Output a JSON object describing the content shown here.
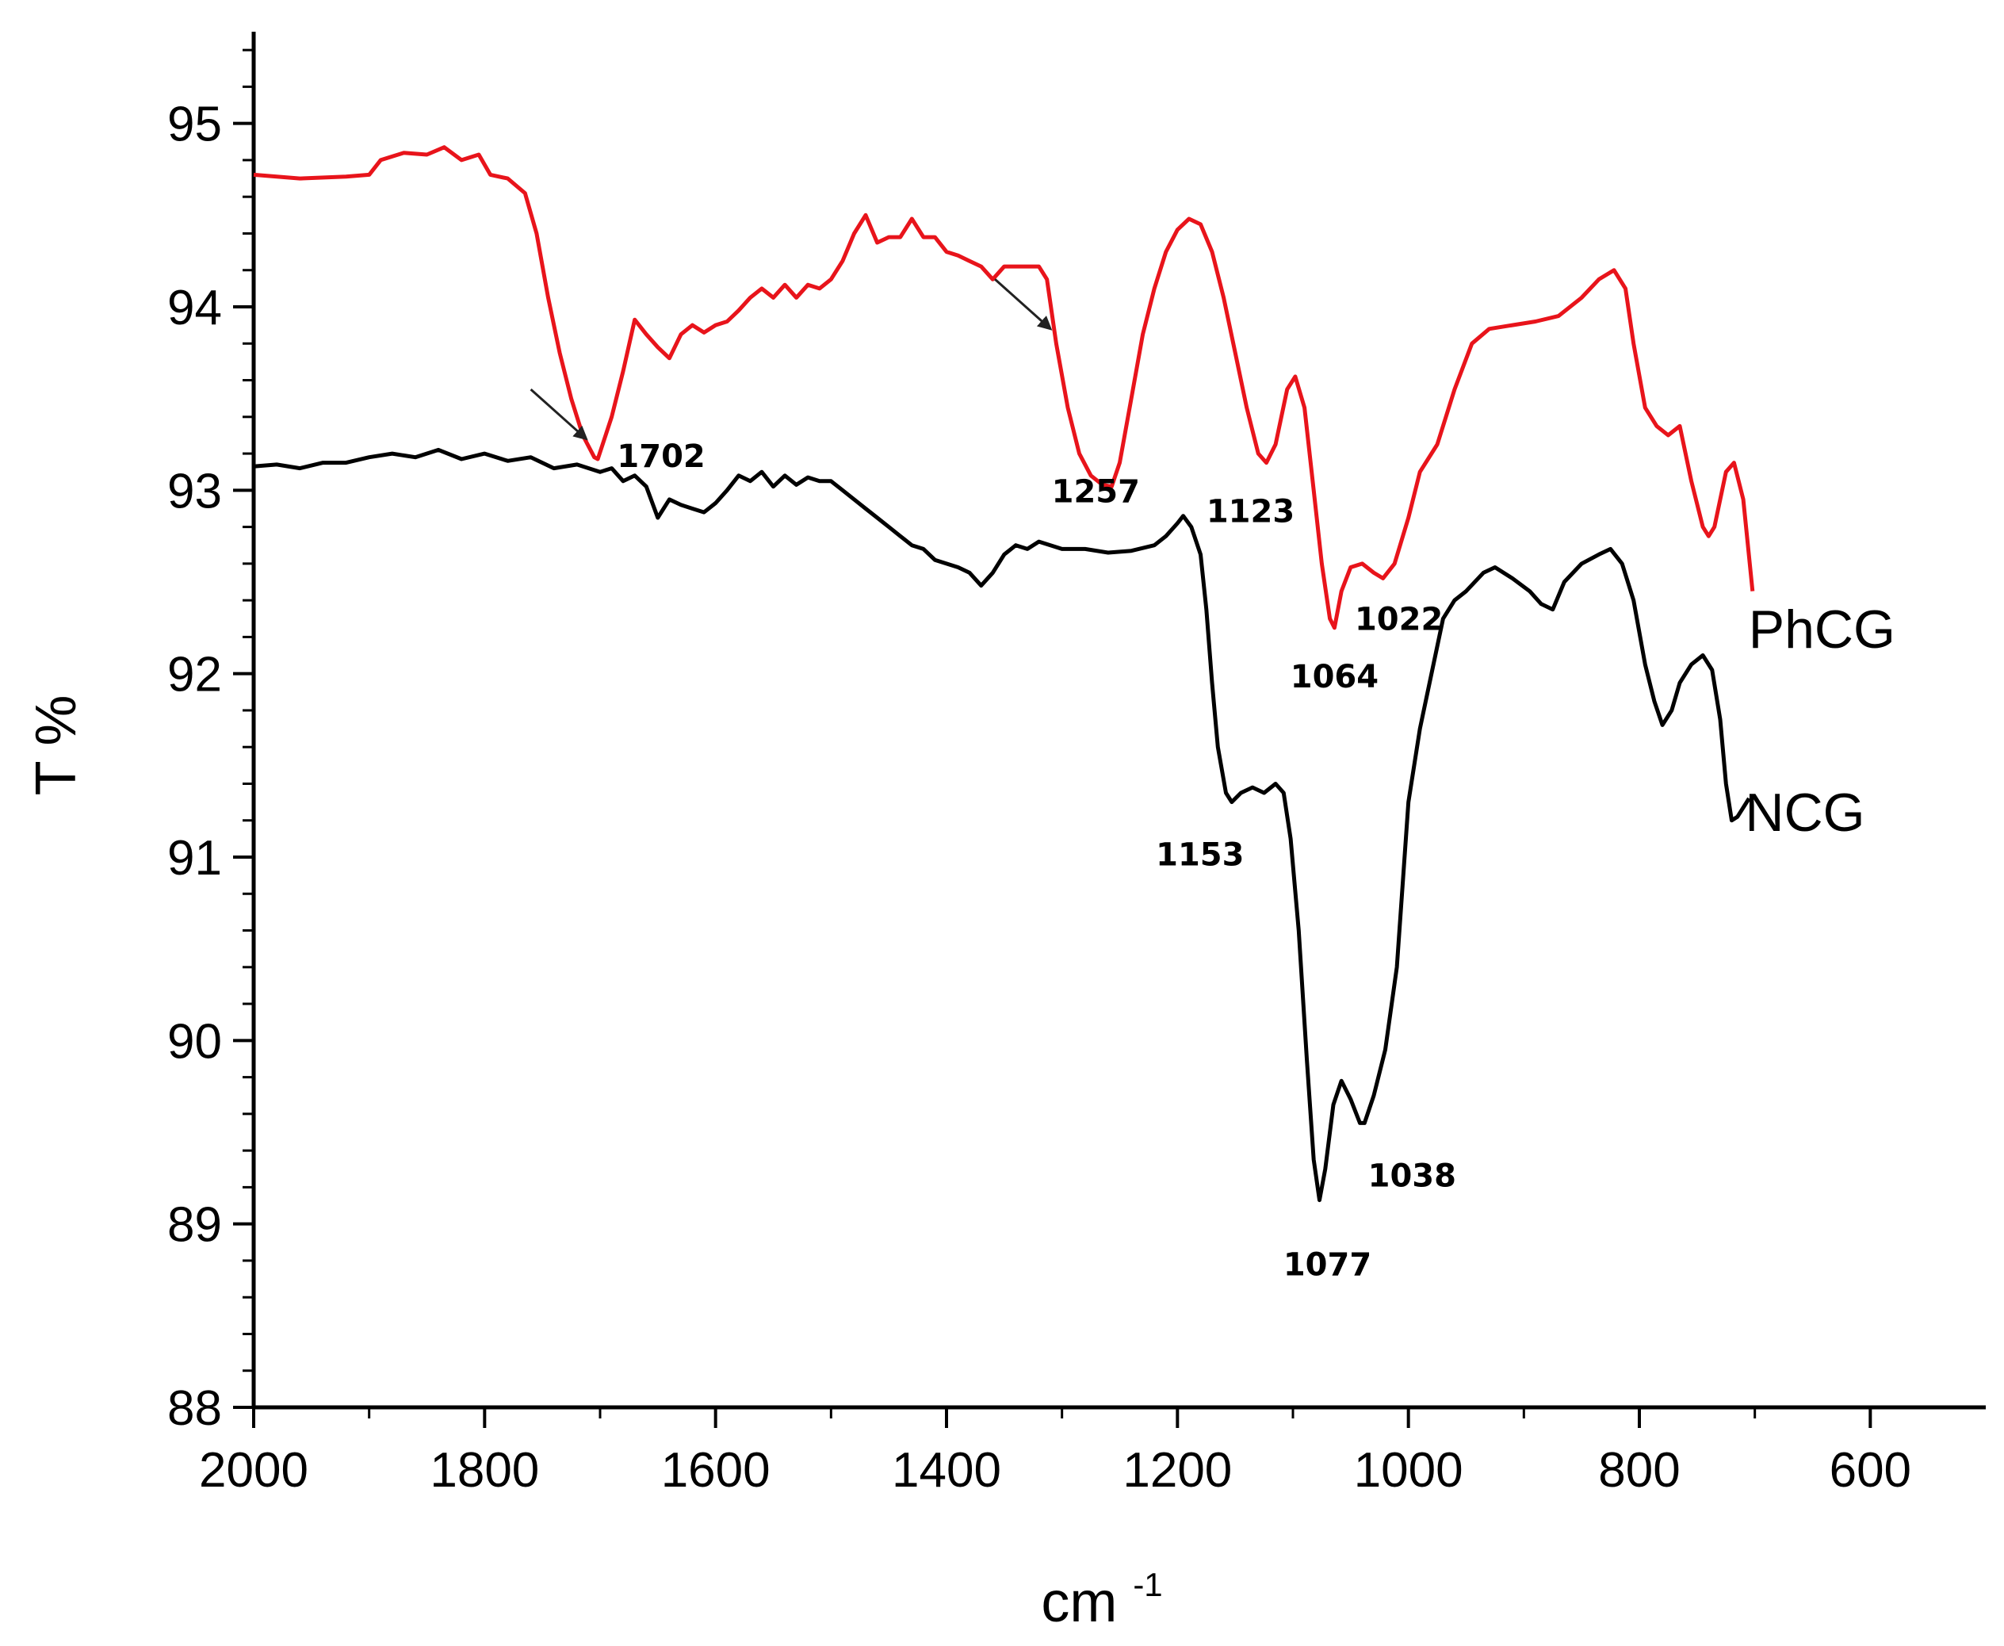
{
  "chart_data": {
    "type": "line",
    "title": "",
    "xlabel": "cm",
    "xlabel_superscript": "-1",
    "ylabel": "T %",
    "xlim": [
      2000,
      500
    ],
    "ylim": [
      88,
      95.5
    ],
    "x_ticks": [
      2000,
      1800,
      1600,
      1400,
      1200,
      1000,
      800,
      600
    ],
    "y_ticks": [
      88,
      89,
      90,
      91,
      92,
      93,
      94,
      95
    ],
    "grid": false,
    "series": [
      {
        "name": "PhCG",
        "color": "#e8141b",
        "points": [
          [
            2000,
            94.72
          ],
          [
            1960,
            94.7
          ],
          [
            1920,
            94.71
          ],
          [
            1900,
            94.72
          ],
          [
            1890,
            94.8
          ],
          [
            1870,
            94.84
          ],
          [
            1850,
            94.83
          ],
          [
            1835,
            94.87
          ],
          [
            1820,
            94.8
          ],
          [
            1805,
            94.83
          ],
          [
            1795,
            94.72
          ],
          [
            1780,
            94.7
          ],
          [
            1765,
            94.62
          ],
          [
            1755,
            94.4
          ],
          [
            1745,
            94.05
          ],
          [
            1735,
            93.75
          ],
          [
            1725,
            93.5
          ],
          [
            1715,
            93.3
          ],
          [
            1705,
            93.18
          ],
          [
            1702,
            93.17
          ],
          [
            1690,
            93.4
          ],
          [
            1680,
            93.65
          ],
          [
            1670,
            93.93
          ],
          [
            1660,
            93.85
          ],
          [
            1650,
            93.78
          ],
          [
            1640,
            93.72
          ],
          [
            1630,
            93.85
          ],
          [
            1620,
            93.9
          ],
          [
            1610,
            93.86
          ],
          [
            1600,
            93.9
          ],
          [
            1590,
            93.92
          ],
          [
            1580,
            93.98
          ],
          [
            1570,
            94.05
          ],
          [
            1560,
            94.1
          ],
          [
            1550,
            94.05
          ],
          [
            1540,
            94.12
          ],
          [
            1530,
            94.05
          ],
          [
            1520,
            94.12
          ],
          [
            1510,
            94.1
          ],
          [
            1500,
            94.15
          ],
          [
            1490,
            94.25
          ],
          [
            1480,
            94.4
          ],
          [
            1470,
            94.5
          ],
          [
            1460,
            94.35
          ],
          [
            1450,
            94.38
          ],
          [
            1440,
            94.38
          ],
          [
            1430,
            94.48
          ],
          [
            1420,
            94.38
          ],
          [
            1410,
            94.38
          ],
          [
            1400,
            94.3
          ],
          [
            1390,
            94.28
          ],
          [
            1380,
            94.25
          ],
          [
            1370,
            94.22
          ],
          [
            1360,
            94.15
          ],
          [
            1350,
            94.22
          ],
          [
            1340,
            94.22
          ],
          [
            1330,
            94.22
          ],
          [
            1320,
            94.22
          ],
          [
            1313,
            94.15
          ],
          [
            1305,
            93.8
          ],
          [
            1295,
            93.45
          ],
          [
            1285,
            93.2
          ],
          [
            1275,
            93.08
          ],
          [
            1265,
            93.03
          ],
          [
            1257,
            93.02
          ],
          [
            1250,
            93.15
          ],
          [
            1240,
            93.5
          ],
          [
            1230,
            93.85
          ],
          [
            1220,
            94.1
          ],
          [
            1210,
            94.3
          ],
          [
            1200,
            94.42
          ],
          [
            1190,
            94.48
          ],
          [
            1180,
            94.45
          ],
          [
            1170,
            94.3
          ],
          [
            1160,
            94.05
          ],
          [
            1150,
            93.75
          ],
          [
            1140,
            93.45
          ],
          [
            1130,
            93.2
          ],
          [
            1123,
            93.15
          ],
          [
            1115,
            93.25
          ],
          [
            1105,
            93.55
          ],
          [
            1098,
            93.62
          ],
          [
            1090,
            93.45
          ],
          [
            1082,
            93.0
          ],
          [
            1075,
            92.6
          ],
          [
            1068,
            92.3
          ],
          [
            1064,
            92.25
          ],
          [
            1058,
            92.45
          ],
          [
            1050,
            92.58
          ],
          [
            1040,
            92.6
          ],
          [
            1030,
            92.55
          ],
          [
            1022,
            92.52
          ],
          [
            1012,
            92.6
          ],
          [
            1000,
            92.85
          ],
          [
            990,
            93.1
          ],
          [
            975,
            93.25
          ],
          [
            960,
            93.55
          ],
          [
            945,
            93.8
          ],
          [
            930,
            93.88
          ],
          [
            910,
            93.9
          ],
          [
            890,
            93.92
          ],
          [
            870,
            93.95
          ],
          [
            850,
            94.05
          ],
          [
            835,
            94.15
          ],
          [
            822,
            94.2
          ],
          [
            812,
            94.1
          ],
          [
            805,
            93.8
          ],
          [
            795,
            93.45
          ],
          [
            785,
            93.35
          ],
          [
            775,
            93.3
          ],
          [
            765,
            93.35
          ],
          [
            755,
            93.05
          ],
          [
            745,
            92.8
          ],
          [
            740,
            92.75
          ],
          [
            735,
            92.8
          ],
          [
            725,
            93.1
          ],
          [
            718,
            93.15
          ],
          [
            710,
            92.95
          ],
          [
            702,
            92.45
          ]
        ]
      },
      {
        "name": "NCG",
        "color": "#000000",
        "points": [
          [
            2000,
            93.13
          ],
          [
            1980,
            93.14
          ],
          [
            1960,
            93.12
          ],
          [
            1940,
            93.15
          ],
          [
            1920,
            93.15
          ],
          [
            1900,
            93.18
          ],
          [
            1880,
            93.2
          ],
          [
            1860,
            93.18
          ],
          [
            1840,
            93.22
          ],
          [
            1820,
            93.17
          ],
          [
            1800,
            93.2
          ],
          [
            1780,
            93.16
          ],
          [
            1760,
            93.18
          ],
          [
            1740,
            93.12
          ],
          [
            1720,
            93.14
          ],
          [
            1700,
            93.1
          ],
          [
            1690,
            93.12
          ],
          [
            1680,
            93.05
          ],
          [
            1670,
            93.08
          ],
          [
            1660,
            93.02
          ],
          [
            1650,
            92.85
          ],
          [
            1640,
            92.95
          ],
          [
            1630,
            92.92
          ],
          [
            1620,
            92.9
          ],
          [
            1610,
            92.88
          ],
          [
            1600,
            92.93
          ],
          [
            1590,
            93.0
          ],
          [
            1580,
            93.08
          ],
          [
            1570,
            93.05
          ],
          [
            1560,
            93.1
          ],
          [
            1550,
            93.02
          ],
          [
            1540,
            93.08
          ],
          [
            1530,
            93.03
          ],
          [
            1520,
            93.07
          ],
          [
            1510,
            93.05
          ],
          [
            1500,
            93.05
          ],
          [
            1490,
            93.0
          ],
          [
            1480,
            92.95
          ],
          [
            1470,
            92.9
          ],
          [
            1460,
            92.85
          ],
          [
            1450,
            92.8
          ],
          [
            1440,
            92.75
          ],
          [
            1430,
            92.7
          ],
          [
            1420,
            92.68
          ],
          [
            1410,
            92.62
          ],
          [
            1400,
            92.6
          ],
          [
            1390,
            92.58
          ],
          [
            1380,
            92.55
          ],
          [
            1370,
            92.48
          ],
          [
            1360,
            92.55
          ],
          [
            1350,
            92.65
          ],
          [
            1340,
            92.7
          ],
          [
            1330,
            92.68
          ],
          [
            1320,
            92.72
          ],
          [
            1310,
            92.7
          ],
          [
            1300,
            92.68
          ],
          [
            1280,
            92.68
          ],
          [
            1260,
            92.66
          ],
          [
            1240,
            92.67
          ],
          [
            1220,
            92.7
          ],
          [
            1210,
            92.75
          ],
          [
            1200,
            92.82
          ],
          [
            1195,
            92.86
          ],
          [
            1188,
            92.8
          ],
          [
            1180,
            92.65
          ],
          [
            1175,
            92.35
          ],
          [
            1170,
            91.95
          ],
          [
            1165,
            91.6
          ],
          [
            1158,
            91.35
          ],
          [
            1153,
            91.3
          ],
          [
            1145,
            91.35
          ],
          [
            1135,
            91.38
          ],
          [
            1125,
            91.35
          ],
          [
            1115,
            91.4
          ],
          [
            1108,
            91.35
          ],
          [
            1102,
            91.1
          ],
          [
            1095,
            90.6
          ],
          [
            1088,
            89.9
          ],
          [
            1082,
            89.35
          ],
          [
            1077,
            89.13
          ],
          [
            1072,
            89.3
          ],
          [
            1065,
            89.65
          ],
          [
            1058,
            89.78
          ],
          [
            1050,
            89.68
          ],
          [
            1042,
            89.55
          ],
          [
            1038,
            89.55
          ],
          [
            1030,
            89.7
          ],
          [
            1020,
            89.95
          ],
          [
            1010,
            90.4
          ],
          [
            1000,
            91.3
          ],
          [
            990,
            91.7
          ],
          [
            980,
            92.0
          ],
          [
            970,
            92.3
          ],
          [
            960,
            92.4
          ],
          [
            950,
            92.45
          ],
          [
            935,
            92.55
          ],
          [
            925,
            92.58
          ],
          [
            910,
            92.52
          ],
          [
            895,
            92.45
          ],
          [
            885,
            92.38
          ],
          [
            875,
            92.35
          ],
          [
            865,
            92.5
          ],
          [
            850,
            92.6
          ],
          [
            835,
            92.65
          ],
          [
            825,
            92.68
          ],
          [
            815,
            92.6
          ],
          [
            805,
            92.4
          ],
          [
            795,
            92.05
          ],
          [
            787,
            91.85
          ],
          [
            780,
            91.72
          ],
          [
            772,
            91.8
          ],
          [
            765,
            91.95
          ],
          [
            755,
            92.05
          ],
          [
            745,
            92.1
          ],
          [
            737,
            92.02
          ],
          [
            730,
            91.75
          ],
          [
            725,
            91.4
          ],
          [
            720,
            91.2
          ],
          [
            715,
            91.22
          ],
          [
            705,
            91.32
          ]
        ]
      }
    ],
    "series_labels": [
      {
        "text": "PhCG",
        "x": 702,
        "y": 92.25
      },
      {
        "text": "NCG",
        "x": 705,
        "y": 91.25
      }
    ],
    "annotations": [
      {
        "text": "1702",
        "x": 1702,
        "y": 93.17,
        "series": "PhCG"
      },
      {
        "text": "1257",
        "x": 1257,
        "y": 93.02,
        "series": "PhCG"
      },
      {
        "text": "1123",
        "x": 1123,
        "y": 93.15,
        "series": "PhCG"
      },
      {
        "text": "1064",
        "x": 1064,
        "y": 92.25,
        "series": "PhCG"
      },
      {
        "text": "1022",
        "x": 1022,
        "y": 92.52,
        "series": "PhCG"
      },
      {
        "text": "1153",
        "x": 1153,
        "y": 91.3,
        "series": "NCG"
      },
      {
        "text": "1077",
        "x": 1077,
        "y": 89.13,
        "series": "NCG"
      },
      {
        "text": "1038",
        "x": 1038,
        "y": 89.55,
        "series": "NCG"
      }
    ],
    "arrows": [
      {
        "from": [
          1760,
          93.55
        ],
        "to": [
          1712,
          93.28
        ]
      },
      {
        "from": [
          1358,
          94.15
        ],
        "to": [
          1310,
          93.88
        ]
      }
    ]
  }
}
